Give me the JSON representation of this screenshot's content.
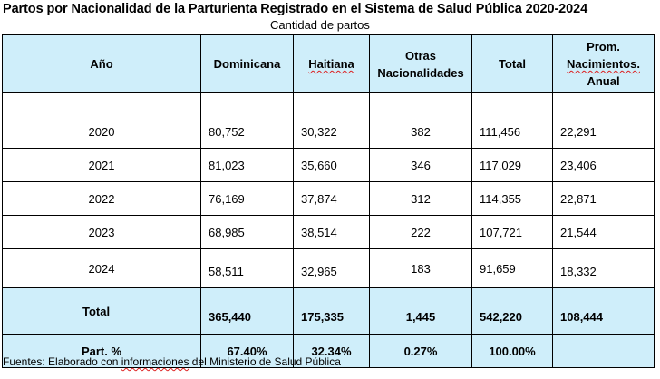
{
  "title": "Partos por Nacionalidad de la Parturienta Registrado en el Sistema de Salud Pública 2020-2024",
  "subtitle": "Cantidad de partos",
  "headers": {
    "year": "Año",
    "dominicana": "Dominicana",
    "haitiana": "Haitiana",
    "otras_line1": "Otras",
    "otras_line2": "Nacionalidades",
    "total": "Total",
    "prom_line1": "Prom.",
    "prom_line2": "Nacimientos.",
    "prom_line3": "Anual"
  },
  "rows": [
    {
      "year": "2020",
      "dominicana": "80,752",
      "haitiana": "30,322",
      "otras": "382",
      "total": "111,456",
      "prom": "22,291"
    },
    {
      "year": "2021",
      "dominicana": "81,023",
      "haitiana": "35,660",
      "otras": "346",
      "total": "117,029",
      "prom": "23,406"
    },
    {
      "year": "2022",
      "dominicana": "76,169",
      "haitiana": "37,874",
      "otras": "312",
      "total": "114,355",
      "prom": "22,871"
    },
    {
      "year": "2023",
      "dominicana": "68,985",
      "haitiana": "38,514",
      "otras": "222",
      "total": "107,721",
      "prom": "21,544"
    },
    {
      "year": "2024",
      "dominicana": "58,511",
      "haitiana": "32,965",
      "otras": "183",
      "total": "91,659",
      "prom": "18,332"
    }
  ],
  "totals": {
    "label": "Total",
    "dominicana": "365,440",
    "haitiana": "175,335",
    "otras": "1,445",
    "total": "542,220",
    "prom": "108,444"
  },
  "participation": {
    "label": "Part. %",
    "dominicana": "67.40%",
    "haitiana": "32.34%",
    "otras": "0.27%",
    "total": "100.00%",
    "prom": ""
  },
  "footer": {
    "part1": "Fuentes:  Elaborado con ",
    "part2": "informaciones",
    "part3": "  del Ministerio de Salud Pública"
  }
}
